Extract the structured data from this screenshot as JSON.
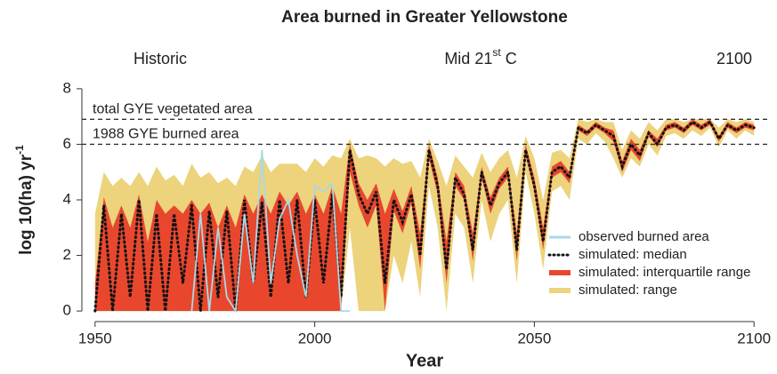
{
  "chart_data": {
    "type": "band-line",
    "title": "Area burned in Greater Yellowstone",
    "x_label": "Year",
    "y_label": [
      "log 10(ha) yr",
      "-1"
    ],
    "periods": [
      [
        "Historic"
      ],
      [
        "Mid 21",
        "st",
        " C"
      ],
      [
        "2100"
      ]
    ],
    "reference_lines": [
      {
        "value": 6.9,
        "label": "total GYE vegetated area"
      },
      {
        "value": 6,
        "label": "1988 GYE burned area"
      }
    ],
    "xlim": [
      1947,
      2103
    ],
    "ylim": [
      -0.38,
      8.38
    ],
    "xticks": [
      1950,
      2000,
      2050,
      2100
    ],
    "yticks": [
      0,
      2,
      4,
      6,
      8
    ],
    "x": [
      1950,
      1952,
      1954,
      1956,
      1958,
      1960,
      1962,
      1964,
      1966,
      1968,
      1970,
      1972,
      1974,
      1976,
      1978,
      1980,
      1982,
      1984,
      1986,
      1988,
      1990,
      1992,
      1994,
      1996,
      1998,
      2000,
      2002,
      2004,
      2006,
      2008,
      2010,
      2012,
      2014,
      2016,
      2018,
      2020,
      2022,
      2024,
      2026,
      2028,
      2030,
      2032,
      2034,
      2036,
      2038,
      2040,
      2042,
      2044,
      2046,
      2048,
      2050,
      2052,
      2054,
      2056,
      2058,
      2060,
      2062,
      2064,
      2066,
      2068,
      2070,
      2072,
      2074,
      2076,
      2078,
      2080,
      2082,
      2084,
      2086,
      2088,
      2090,
      2092,
      2094,
      2096,
      2098,
      2100
    ],
    "series": [
      {
        "name": "observed burned area",
        "color": "#a9d9e6",
        "kind": "line",
        "values": [
          null,
          null,
          null,
          null,
          null,
          null,
          null,
          null,
          null,
          null,
          null,
          0,
          3.5,
          0,
          3,
          0.5,
          0,
          3.5,
          1,
          5.8,
          1,
          3.3,
          4,
          2,
          0.5,
          4.5,
          4.3,
          4.6,
          0,
          0,
          null,
          null,
          null,
          null,
          null,
          null,
          null,
          null,
          null,
          null,
          null,
          null,
          null,
          null,
          null,
          null,
          null,
          null,
          null,
          null,
          null,
          null,
          null,
          null,
          null,
          null,
          null,
          null,
          null,
          null,
          null,
          null,
          null,
          null,
          null,
          null,
          null,
          null,
          null,
          null,
          null,
          null,
          null,
          null,
          null,
          null
        ]
      },
      {
        "name": "simulated: median",
        "color": "#111111",
        "kind": "dotted",
        "values": [
          0,
          3.8,
          0,
          3.5,
          0.5,
          4,
          0,
          3.5,
          0,
          3.5,
          1,
          3.8,
          0,
          3.6,
          0.5,
          3.6,
          0,
          4,
          1,
          3.9,
          0.5,
          4,
          1,
          4,
          0.5,
          4,
          1,
          4.2,
          0.5,
          5.8,
          4.2,
          3.5,
          4.3,
          1,
          4,
          3.2,
          4.2,
          2,
          5.8,
          4.5,
          1.5,
          4.8,
          4.2,
          2.2,
          5,
          3.8,
          4.6,
          5,
          2.2,
          5.8,
          4.5,
          2.5,
          5,
          5.2,
          4.8,
          6.6,
          6.4,
          6.7,
          6.5,
          6.3,
          5.2,
          6,
          5.6,
          6.4,
          6,
          6.6,
          6.7,
          6.5,
          6.8,
          6.6,
          6.8,
          6.2,
          6.7,
          6.5,
          6.7,
          6.6
        ]
      },
      {
        "name": "simulated: interquartile range",
        "color": "#e8472e",
        "kind": "band",
        "lower": [
          0,
          0,
          0,
          0,
          0,
          0,
          0,
          0,
          0,
          0,
          0,
          0,
          0,
          0,
          0,
          0,
          0,
          0,
          0,
          0,
          0,
          0,
          0,
          0,
          0,
          0,
          0,
          0,
          0,
          5,
          3.8,
          3,
          3.8,
          0,
          3.6,
          2.8,
          3.9,
          1.5,
          5.5,
          4.2,
          1,
          4.5,
          4,
          1.8,
          4.8,
          3.5,
          4.4,
          4.8,
          1.8,
          5.6,
          4.3,
          2.2,
          4.8,
          5,
          4.6,
          6.5,
          6.3,
          6.6,
          6.4,
          6.1,
          5,
          5.8,
          5.4,
          6.3,
          5.9,
          6.5,
          6.6,
          6.4,
          6.7,
          6.5,
          6.7,
          6.1,
          6.6,
          6.4,
          6.6,
          6.5
        ],
        "upper": [
          1,
          4.1,
          3,
          3.8,
          3,
          4.2,
          2.5,
          4,
          3.5,
          3.8,
          3.5,
          4,
          3.5,
          3.9,
          3,
          3.8,
          3,
          4.2,
          3.5,
          4.2,
          3.5,
          4.3,
          3.8,
          4.3,
          3.5,
          4.2,
          3.5,
          4.5,
          3.5,
          6,
          4.6,
          4,
          4.6,
          3.5,
          4.4,
          3.6,
          4.5,
          2.8,
          6,
          4.8,
          2.5,
          5,
          4.5,
          2.8,
          5.2,
          4.1,
          4.8,
          5.2,
          2.8,
          6,
          4.8,
          3,
          5.2,
          5.4,
          5,
          6.7,
          6.5,
          6.8,
          6.6,
          6.5,
          5.4,
          6.2,
          5.8,
          6.5,
          6.2,
          6.7,
          6.8,
          6.6,
          6.9,
          6.7,
          6.9,
          6.3,
          6.8,
          6.6,
          6.8,
          6.7
        ]
      },
      {
        "name": "simulated: range",
        "color": "#ecd37c",
        "kind": "band",
        "lower": [
          0,
          0,
          0,
          0,
          0,
          0,
          0,
          0,
          0,
          0,
          0,
          0,
          0,
          0,
          0,
          0,
          0,
          0,
          0,
          0,
          0,
          0,
          0,
          0,
          0,
          0,
          0,
          0,
          0,
          3,
          0,
          0,
          0,
          0,
          2,
          1,
          2.5,
          0.5,
          4.5,
          3,
          0,
          3.5,
          3,
          1,
          4,
          2.5,
          3.5,
          4,
          1,
          5,
          3.5,
          1.5,
          4.3,
          4.5,
          4,
          6.2,
          6,
          6.4,
          6.1,
          5.5,
          4.8,
          5.5,
          5.2,
          6,
          5.6,
          6.3,
          6.4,
          6.2,
          6.5,
          6.3,
          6.6,
          5.9,
          6.5,
          6.2,
          6.5,
          6.3
        ],
        "upper": [
          3.5,
          5,
          4.5,
          4.8,
          4.5,
          5,
          4.5,
          5.2,
          4.7,
          4.9,
          4.5,
          5.3,
          4.8,
          5,
          4.6,
          4.8,
          4.5,
          5.2,
          5,
          5.6,
          5,
          5.3,
          5.3,
          5.3,
          5,
          5.5,
          5.2,
          5.6,
          5.5,
          6.2,
          5.5,
          5.6,
          5.5,
          5.2,
          5.5,
          5.3,
          5.4,
          4.8,
          6.2,
          5.4,
          4.5,
          5.6,
          5.2,
          4.8,
          5.7,
          5,
          5.5,
          5.8,
          4.8,
          6.3,
          5.5,
          4,
          5.7,
          5.8,
          5.5,
          6.9,
          6.8,
          6.9,
          6.8,
          6.8,
          5.8,
          6.5,
          6.2,
          6.8,
          6.5,
          6.9,
          6.9,
          6.8,
          6.9,
          6.9,
          6.9,
          6.6,
          6.9,
          6.8,
          6.9,
          6.8
        ]
      }
    ]
  }
}
